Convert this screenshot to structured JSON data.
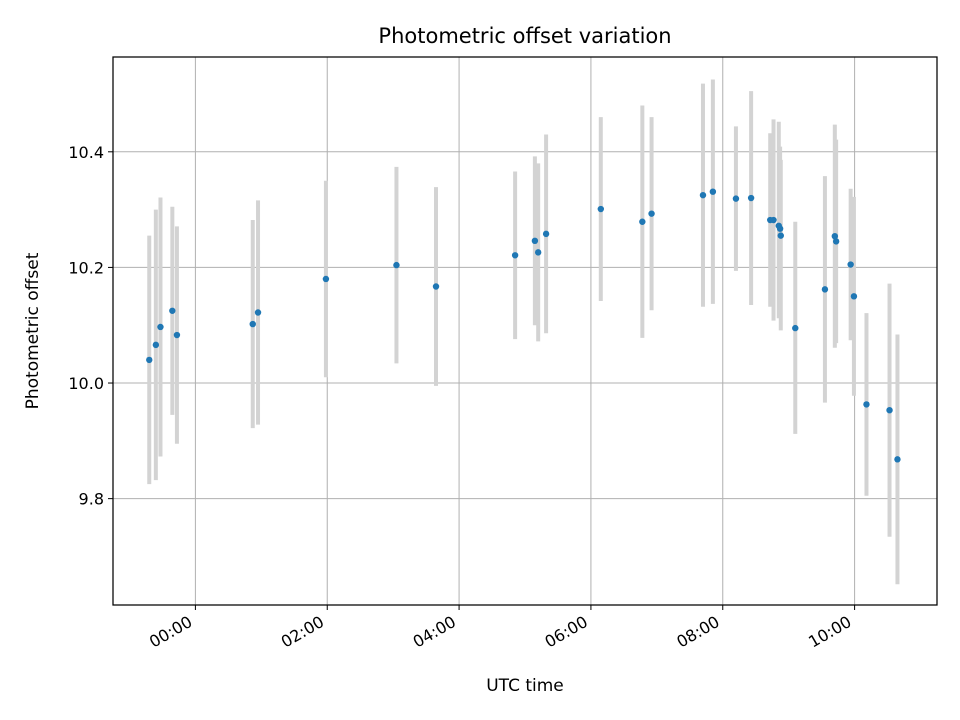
{
  "chart_data": {
    "type": "scatter",
    "title": "Photometric offset variation",
    "xlabel": "UTC time",
    "ylabel": "Photometric offset",
    "x_unit": "hours UTC",
    "xlim": [
      -1.25,
      11.25
    ],
    "ylim": [
      9.616,
      10.564
    ],
    "grid": true,
    "x_ticks": [
      {
        "value": 0,
        "label": "00:00"
      },
      {
        "value": 2,
        "label": "02:00"
      },
      {
        "value": 4,
        "label": "04:00"
      },
      {
        "value": 6,
        "label": "06:00"
      },
      {
        "value": 8,
        "label": "08:00"
      },
      {
        "value": 10,
        "label": "10:00"
      }
    ],
    "y_ticks": [
      {
        "value": 9.8,
        "label": "9.8"
      },
      {
        "value": 10.0,
        "label": "10.0"
      },
      {
        "value": 10.2,
        "label": "10.2"
      },
      {
        "value": 10.4,
        "label": "10.4"
      }
    ],
    "colors": {
      "points": "#1f77b4",
      "error_bars": "#d3d3d3",
      "grid": "#b0b0b0"
    },
    "points": [
      {
        "x": -0.7,
        "y": 10.04,
        "ylow": 9.825,
        "yhigh": 10.255
      },
      {
        "x": -0.6,
        "y": 10.066,
        "ylow": 9.832,
        "yhigh": 10.3
      },
      {
        "x": -0.53,
        "y": 10.097,
        "ylow": 9.873,
        "yhigh": 10.321
      },
      {
        "x": -0.35,
        "y": 10.125,
        "ylow": 9.945,
        "yhigh": 10.305
      },
      {
        "x": -0.28,
        "y": 10.083,
        "ylow": 9.895,
        "yhigh": 10.271
      },
      {
        "x": 0.87,
        "y": 10.102,
        "ylow": 9.922,
        "yhigh": 10.282
      },
      {
        "x": 0.95,
        "y": 10.122,
        "ylow": 9.928,
        "yhigh": 10.316
      },
      {
        "x": 1.98,
        "y": 10.18,
        "ylow": 10.01,
        "yhigh": 10.35
      },
      {
        "x": 3.05,
        "y": 10.204,
        "ylow": 10.034,
        "yhigh": 10.374
      },
      {
        "x": 3.65,
        "y": 10.167,
        "ylow": 9.995,
        "yhigh": 10.339
      },
      {
        "x": 4.85,
        "y": 10.221,
        "ylow": 10.076,
        "yhigh": 10.366
      },
      {
        "x": 5.15,
        "y": 10.246,
        "ylow": 10.1,
        "yhigh": 10.392
      },
      {
        "x": 5.2,
        "y": 10.226,
        "ylow": 10.072,
        "yhigh": 10.38
      },
      {
        "x": 5.32,
        "y": 10.258,
        "ylow": 10.086,
        "yhigh": 10.43
      },
      {
        "x": 6.15,
        "y": 10.301,
        "ylow": 10.142,
        "yhigh": 10.46
      },
      {
        "x": 6.78,
        "y": 10.279,
        "ylow": 10.078,
        "yhigh": 10.48
      },
      {
        "x": 6.92,
        "y": 10.293,
        "ylow": 10.126,
        "yhigh": 10.46
      },
      {
        "x": 7.7,
        "y": 10.325,
        "ylow": 10.132,
        "yhigh": 10.518
      },
      {
        "x": 7.85,
        "y": 10.331,
        "ylow": 10.137,
        "yhigh": 10.525
      },
      {
        "x": 8.2,
        "y": 10.319,
        "ylow": 10.194,
        "yhigh": 10.444
      },
      {
        "x": 8.43,
        "y": 10.32,
        "ylow": 10.135,
        "yhigh": 10.505
      },
      {
        "x": 8.72,
        "y": 10.282,
        "ylow": 10.132,
        "yhigh": 10.432
      },
      {
        "x": 8.77,
        "y": 10.282,
        "ylow": 10.108,
        "yhigh": 10.456
      },
      {
        "x": 8.85,
        "y": 10.272,
        "ylow": 10.112,
        "yhigh": 10.452
      },
      {
        "x": 8.87,
        "y": 10.267,
        "ylow": 10.125,
        "yhigh": 10.409
      },
      {
        "x": 8.88,
        "y": 10.255,
        "ylow": 10.091,
        "yhigh": 10.386
      },
      {
        "x": 9.1,
        "y": 10.095,
        "ylow": 9.912,
        "yhigh": 10.279
      },
      {
        "x": 9.55,
        "y": 10.162,
        "ylow": 9.966,
        "yhigh": 10.358
      },
      {
        "x": 9.7,
        "y": 10.254,
        "ylow": 10.061,
        "yhigh": 10.447
      },
      {
        "x": 9.72,
        "y": 10.245,
        "ylow": 10.069,
        "yhigh": 10.421
      },
      {
        "x": 9.94,
        "y": 10.205,
        "ylow": 10.074,
        "yhigh": 10.336
      },
      {
        "x": 9.99,
        "y": 10.15,
        "ylow": 9.978,
        "yhigh": 10.322
      },
      {
        "x": 10.18,
        "y": 9.963,
        "ylow": 9.805,
        "yhigh": 10.121
      },
      {
        "x": 10.53,
        "y": 9.953,
        "ylow": 9.734,
        "yhigh": 10.172
      },
      {
        "x": 10.65,
        "y": 9.868,
        "ylow": 9.652,
        "yhigh": 10.084
      }
    ]
  }
}
